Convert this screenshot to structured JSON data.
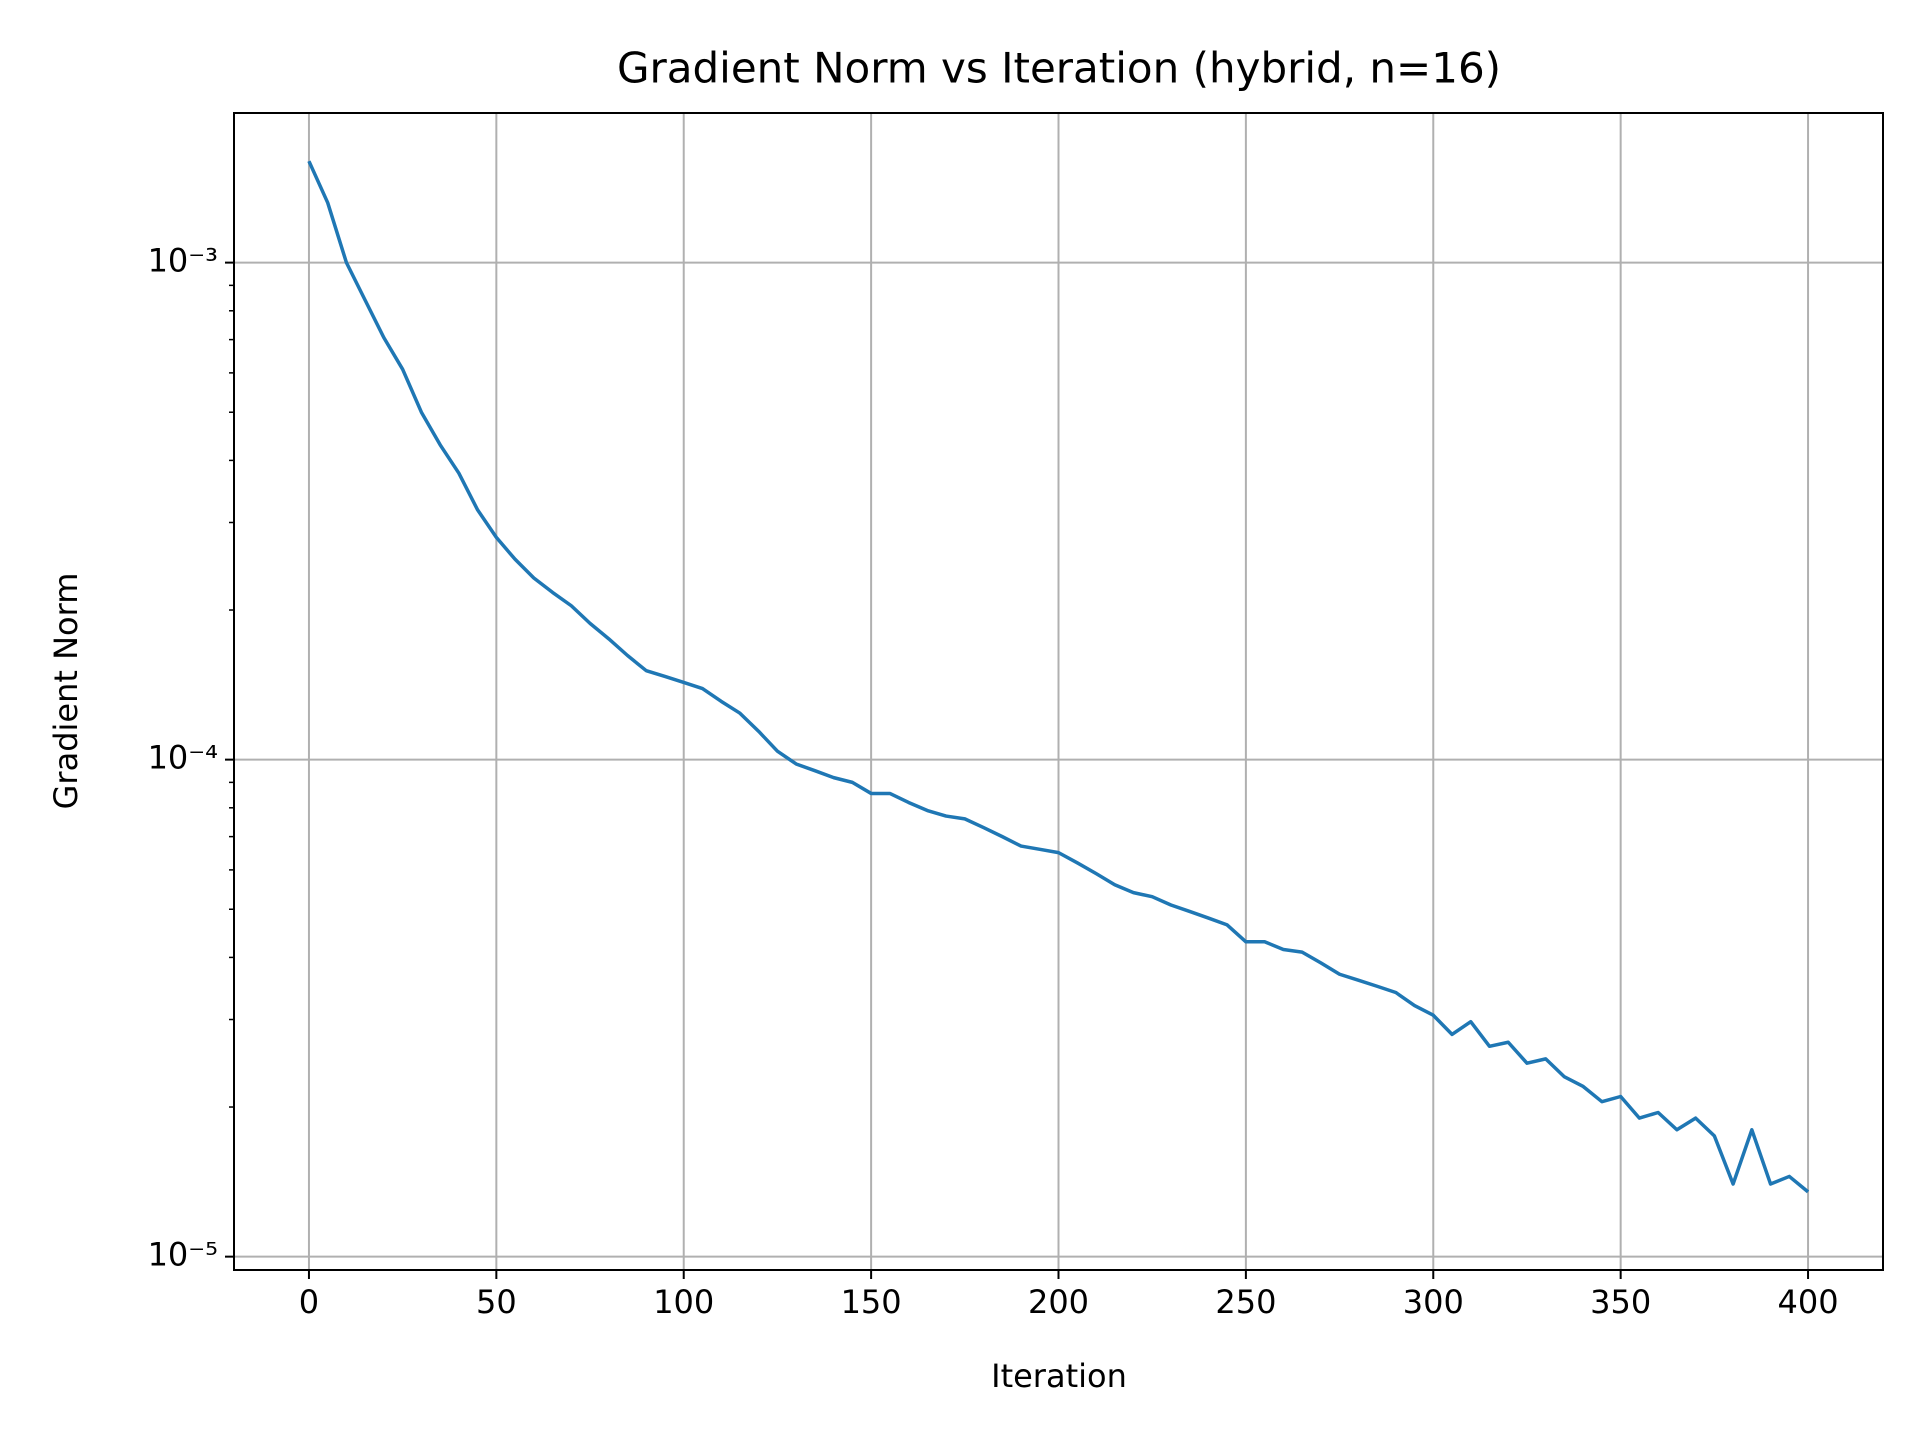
{
  "chart_data": {
    "type": "line",
    "title": "Gradient Norm vs Iteration (hybrid, n=16)",
    "xlabel": "Iteration",
    "ylabel": "Gradient Norm",
    "yscale": "log",
    "grid": true,
    "xlim": [
      -20,
      420
    ],
    "ylim": [
      9.4e-06,
      0.002
    ],
    "xticks": [
      0,
      50,
      100,
      150,
      200,
      250,
      300,
      350,
      400
    ],
    "yticks": [
      {
        "value": 1e-05,
        "label": "10⁻⁵"
      },
      {
        "value": 0.0001,
        "label": "10⁻⁴"
      },
      {
        "value": 0.001,
        "label": "10⁻³"
      }
    ],
    "yminorticks": [
      2e-05,
      3e-05,
      4e-05,
      5e-05,
      6e-05,
      7e-05,
      8e-05,
      9e-05,
      0.0002,
      0.0003,
      0.0004,
      0.0005,
      0.0006,
      0.0007,
      0.0008,
      0.0009
    ],
    "x": [
      0,
      5,
      10,
      15,
      20,
      25,
      30,
      35,
      40,
      45,
      50,
      55,
      60,
      65,
      70,
      75,
      80,
      85,
      90,
      95,
      100,
      105,
      110,
      115,
      120,
      125,
      130,
      135,
      140,
      145,
      150,
      155,
      160,
      165,
      170,
      175,
      180,
      185,
      190,
      195,
      200,
      205,
      210,
      215,
      220,
      225,
      230,
      235,
      240,
      245,
      250,
      255,
      260,
      265,
      270,
      275,
      280,
      285,
      290,
      295,
      300,
      305,
      310,
      315,
      320,
      325,
      330,
      335,
      340,
      345,
      350,
      355,
      360,
      365,
      370,
      375,
      380,
      385,
      390,
      395,
      400
    ],
    "series": [
      {
        "color": "#1f77b4",
        "values": [
          0.0016,
          0.00132,
          0.001,
          0.00084,
          0.000706,
          0.00061,
          0.0005,
          0.00043,
          0.000377,
          0.000318,
          0.00028,
          0.000253,
          0.000232,
          0.000217,
          0.000204,
          0.000188,
          0.000175,
          0.000162,
          0.000151,
          0.000147,
          0.000143,
          0.000139,
          0.000131,
          0.000124,
          0.000114,
          0.000104,
          9.8e-05,
          9.5e-05,
          9.2e-05,
          9e-05,
          8.55e-05,
          8.55e-05,
          8.2e-05,
          7.9e-05,
          7.7e-05,
          7.6e-05,
          7.3e-05,
          7e-05,
          6.7e-05,
          6.6e-05,
          6.5e-05,
          6.2e-05,
          5.9e-05,
          5.6e-05,
          5.4e-05,
          5.3e-05,
          5.1e-05,
          4.95e-05,
          4.8e-05,
          4.65e-05,
          4.3e-05,
          4.3e-05,
          4.15e-05,
          4.1e-05,
          3.9e-05,
          3.7e-05,
          3.6e-05,
          3.5e-05,
          3.4e-05,
          3.2e-05,
          3.06e-05,
          2.8e-05,
          2.97e-05,
          2.65e-05,
          2.7e-05,
          2.45e-05,
          2.5e-05,
          2.3e-05,
          2.2e-05,
          2.05e-05,
          2.1e-05,
          1.9e-05,
          1.95e-05,
          1.8e-05,
          1.9e-05,
          1.75e-05,
          1.4e-05,
          1.8e-05,
          1.4e-05,
          1.45e-05,
          1.35e-05
        ]
      }
    ]
  }
}
